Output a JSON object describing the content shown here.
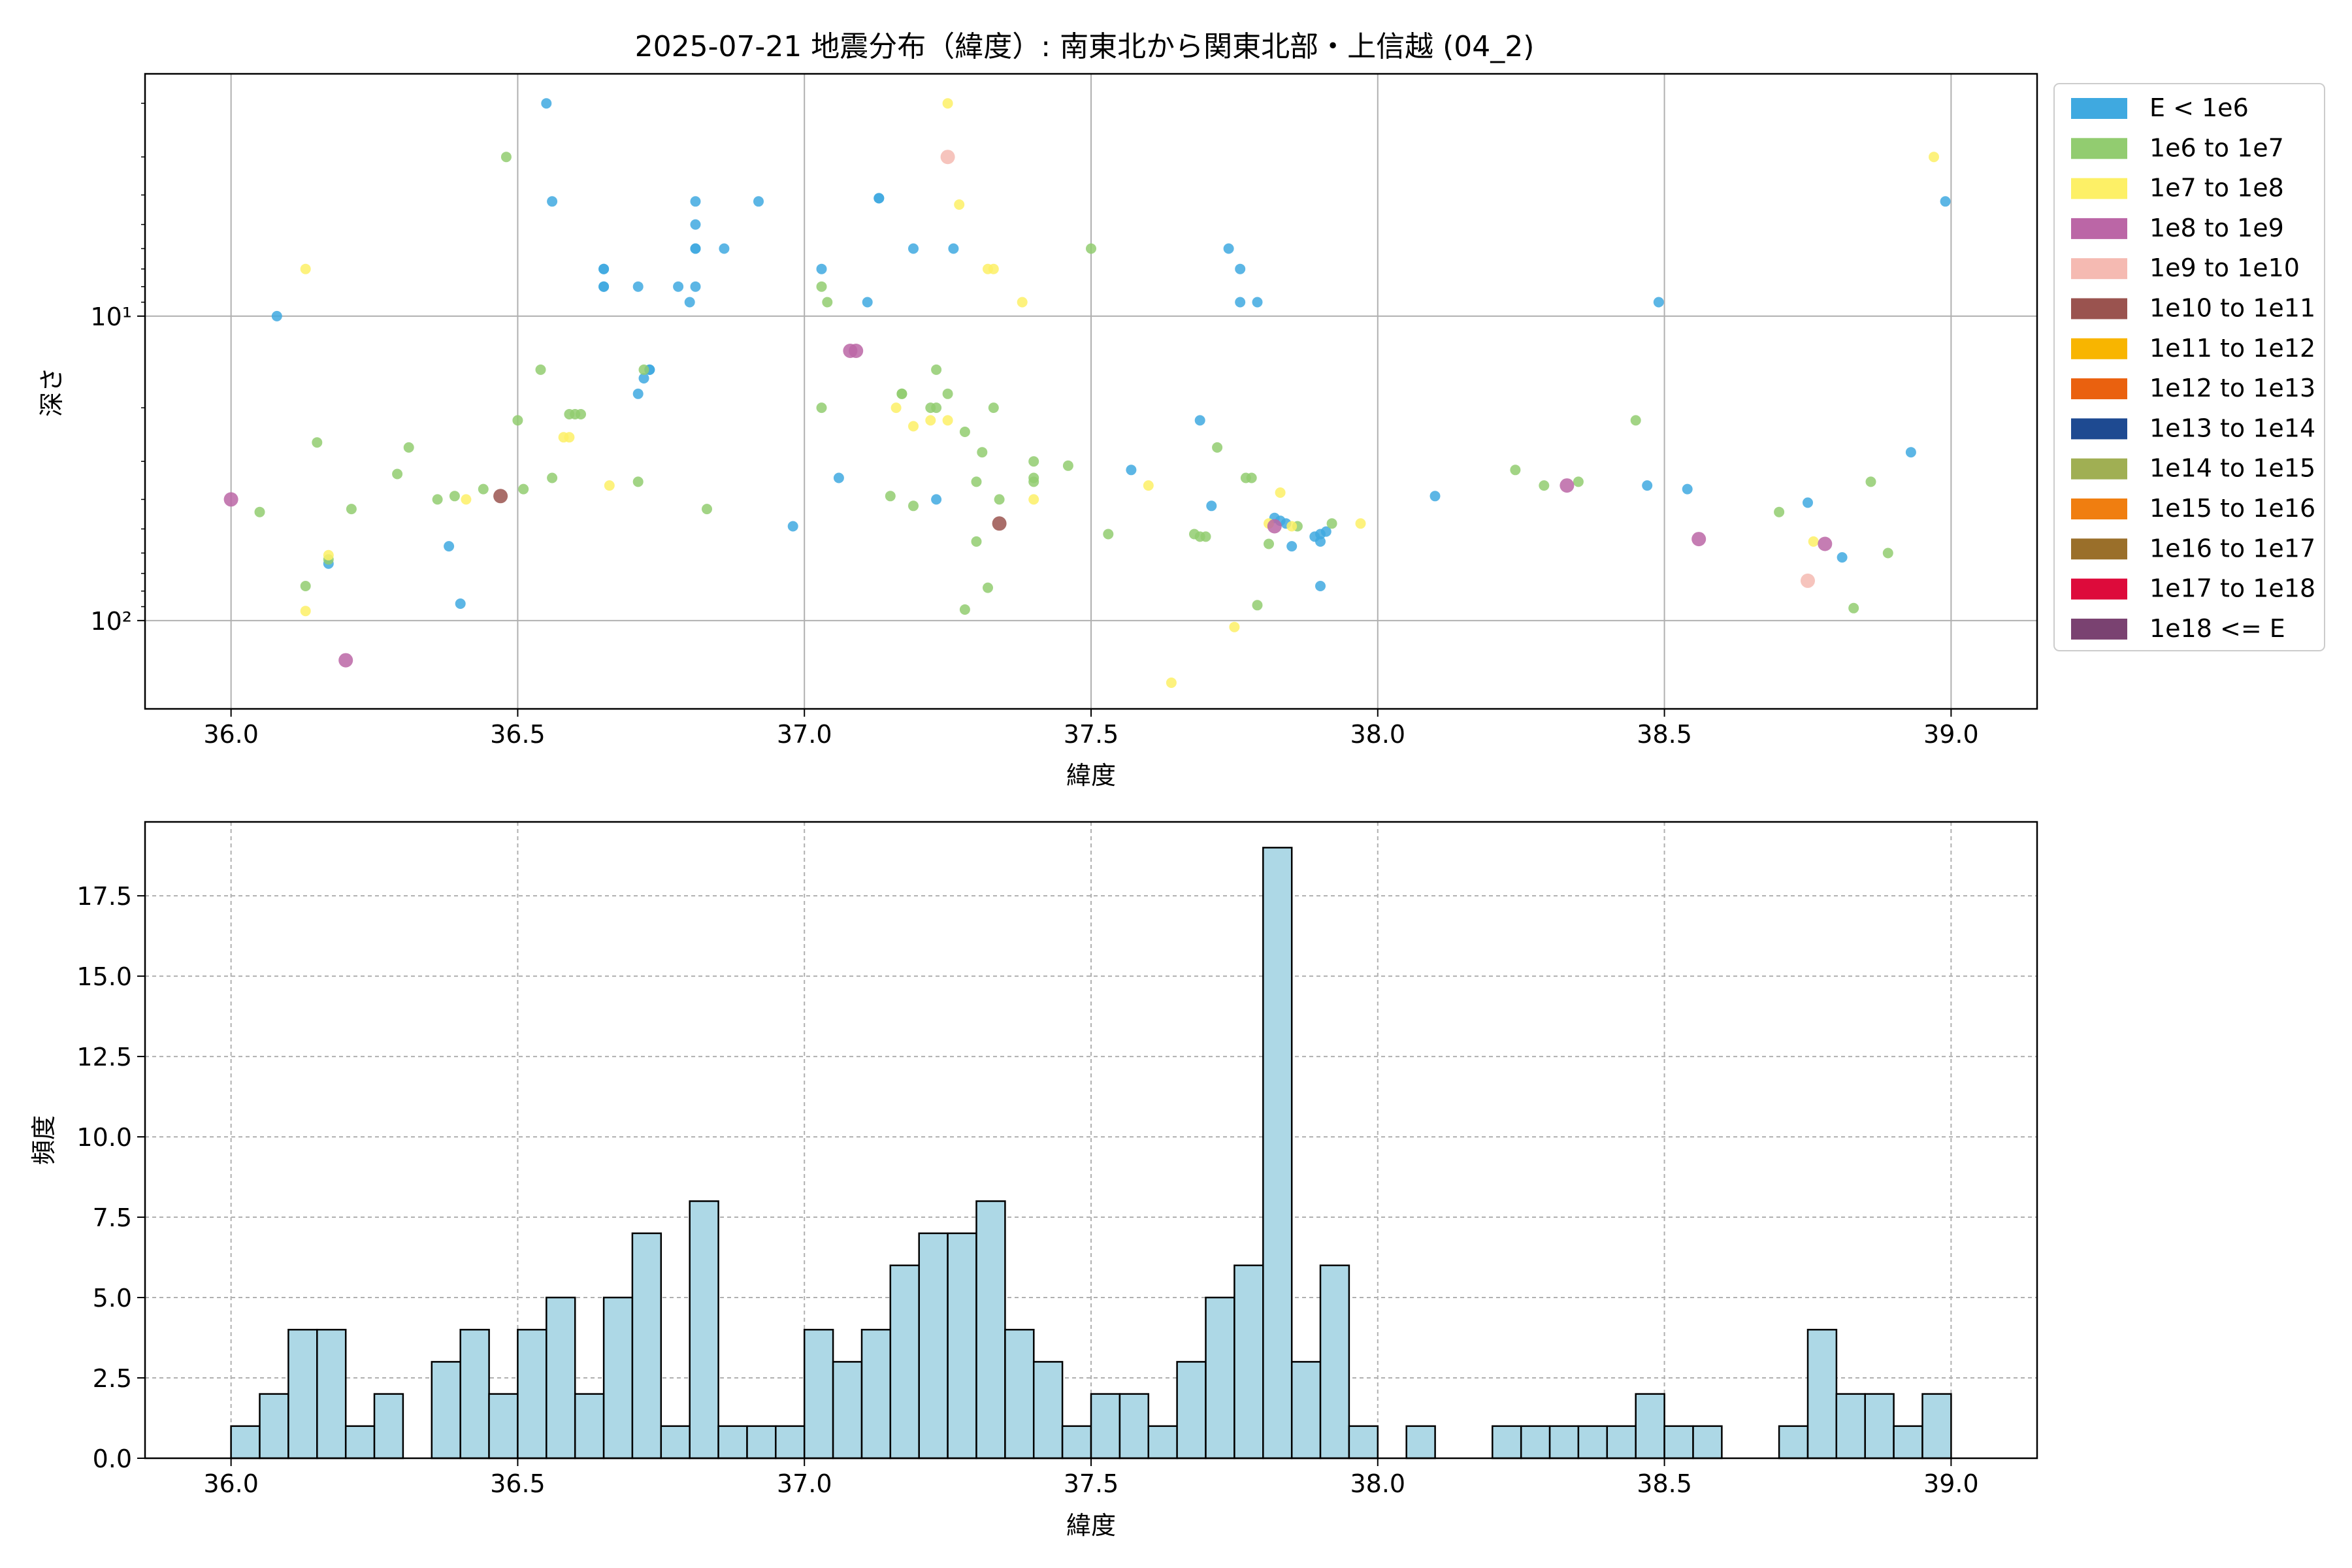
{
  "figure_title": "2025-07-21 地震分布（緯度）: 南東北から関東北部・上信越 (04_2)",
  "chart_data": [
    {
      "type": "scatter",
      "title": "2025-07-21 地震分布（緯度）: 南東北から関東北部・上信越 (04_2)",
      "xlabel": "緯度",
      "ylabel": "深さ",
      "xlim": [
        35.85,
        39.15
      ],
      "ylim": [
        195,
        1.6
      ],
      "yscale": "log",
      "y_inverted": true,
      "xticks": [
        36.0,
        36.5,
        37.0,
        37.5,
        38.0,
        38.5,
        39.0
      ],
      "xtick_labels": [
        "36.0",
        "36.5",
        "37.0",
        "37.5",
        "38.0",
        "38.5",
        "39.0"
      ],
      "yticks": [
        10,
        100
      ],
      "ytick_labels": [
        "10¹",
        "10²"
      ],
      "grid": true,
      "legend_position": "outside-right",
      "legend": [
        {
          "label": "E < 1e6",
          "color": "#3fa9e0"
        },
        {
          "label": "1e6 to 1e7",
          "color": "#92cc70"
        },
        {
          "label": "1e7 to 1e8",
          "color": "#fdf066"
        },
        {
          "label": "1e8 to 1e9",
          "color": "#bb66a6"
        },
        {
          "label": "1e9 to 1e10",
          "color": "#f5bab2"
        },
        {
          "label": "1e10 to 1e11",
          "color": "#9a534f"
        },
        {
          "label": "1e11 to 1e12",
          "color": "#f8b500"
        },
        {
          "label": "1e12 to 1e13",
          "color": "#ea610f"
        },
        {
          "label": "1e13 to 1e14",
          "color": "#1e4a91"
        },
        {
          "label": "1e14 to 1e15",
          "color": "#a0af53"
        },
        {
          "label": "1e15 to 1e16",
          "color": "#f07e10"
        },
        {
          "label": "1e16 to 1e17",
          "color": "#9a6f2a"
        },
        {
          "label": "1e17 to 1e18",
          "color": "#dd0b3b"
        },
        {
          "label": "1e18 <= E",
          "color": "#7a4271"
        }
      ],
      "series": [
        {
          "name": "E < 1e6",
          "color": "#3fa9e0",
          "points": [
            [
              36.08,
              10
            ],
            [
              36.17,
              65
            ],
            [
              36.38,
              57
            ],
            [
              36.4,
              88
            ],
            [
              36.55,
              2
            ],
            [
              36.56,
              4.2
            ],
            [
              36.65,
              7
            ],
            [
              36.65,
              7
            ],
            [
              36.65,
              8
            ],
            [
              36.65,
              8
            ],
            [
              36.71,
              8
            ],
            [
              36.71,
              18
            ],
            [
              36.72,
              16
            ],
            [
              36.73,
              15
            ],
            [
              36.73,
              15
            ],
            [
              36.78,
              8
            ],
            [
              36.8,
              9
            ],
            [
              36.81,
              8
            ],
            [
              36.81,
              4.2
            ],
            [
              36.81,
              5
            ],
            [
              36.81,
              6
            ],
            [
              36.81,
              6
            ],
            [
              36.86,
              6
            ],
            [
              36.92,
              4.2
            ],
            [
              36.98,
              49
            ],
            [
              37.03,
              7
            ],
            [
              37.06,
              34
            ],
            [
              37.11,
              9
            ],
            [
              37.13,
              4.1
            ],
            [
              37.13,
              4.1
            ],
            [
              37.19,
              6
            ],
            [
              37.23,
              40
            ],
            [
              37.26,
              6
            ],
            [
              37.57,
              32
            ],
            [
              37.69,
              22
            ],
            [
              37.71,
              42
            ],
            [
              37.74,
              6
            ],
            [
              37.76,
              7
            ],
            [
              37.76,
              9
            ],
            [
              37.79,
              9
            ],
            [
              37.82,
              46
            ],
            [
              37.83,
              47
            ],
            [
              37.84,
              48
            ],
            [
              37.85,
              57
            ],
            [
              37.89,
              53
            ],
            [
              37.9,
              55
            ],
            [
              37.9,
              52
            ],
            [
              37.91,
              51
            ],
            [
              37.9,
              77
            ],
            [
              38.1,
              39
            ],
            [
              38.47,
              36
            ],
            [
              38.49,
              9
            ],
            [
              38.54,
              37
            ],
            [
              38.75,
              41
            ],
            [
              38.81,
              62
            ],
            [
              38.93,
              28
            ],
            [
              38.99,
              4.2
            ]
          ]
        },
        {
          "name": "1e6 to 1e7",
          "color": "#92cc70",
          "points": [
            [
              36.05,
              44
            ],
            [
              36.13,
              77
            ],
            [
              36.15,
              26
            ],
            [
              36.17,
              63
            ],
            [
              36.21,
              43
            ],
            [
              36.29,
              33
            ],
            [
              36.31,
              27
            ],
            [
              36.36,
              40
            ],
            [
              36.39,
              39
            ],
            [
              36.44,
              37
            ],
            [
              36.48,
              3
            ],
            [
              36.5,
              22
            ],
            [
              36.51,
              37
            ],
            [
              36.54,
              15
            ],
            [
              36.56,
              34
            ],
            [
              36.59,
              21
            ],
            [
              36.6,
              21
            ],
            [
              36.61,
              21
            ],
            [
              36.71,
              35
            ],
            [
              36.72,
              15
            ],
            [
              36.83,
              43
            ],
            [
              37.03,
              20
            ],
            [
              37.03,
              8
            ],
            [
              37.04,
              9
            ],
            [
              37.15,
              39
            ],
            [
              37.17,
              18
            ],
            [
              37.17,
              18
            ],
            [
              37.19,
              42
            ],
            [
              37.22,
              20
            ],
            [
              37.23,
              15
            ],
            [
              37.23,
              20
            ],
            [
              37.25,
              18
            ],
            [
              37.28,
              24
            ],
            [
              37.28,
              92
            ],
            [
              37.3,
              35
            ],
            [
              37.3,
              55
            ],
            [
              37.31,
              28
            ],
            [
              37.32,
              78
            ],
            [
              37.33,
              20
            ],
            [
              37.34,
              40
            ],
            [
              37.4,
              35
            ],
            [
              37.4,
              34
            ],
            [
              37.4,
              30
            ],
            [
              37.46,
              31
            ],
            [
              37.5,
              6
            ],
            [
              37.53,
              52
            ],
            [
              37.68,
              52
            ],
            [
              37.69,
              53
            ],
            [
              37.7,
              53
            ],
            [
              37.72,
              27
            ],
            [
              37.77,
              34
            ],
            [
              37.78,
              34
            ],
            [
              37.79,
              89
            ],
            [
              37.81,
              56
            ],
            [
              37.86,
              49
            ],
            [
              37.92,
              48
            ],
            [
              38.24,
              32
            ],
            [
              38.29,
              36
            ],
            [
              38.35,
              35
            ],
            [
              38.45,
              22
            ],
            [
              38.7,
              44
            ],
            [
              38.83,
              91
            ],
            [
              38.86,
              35
            ],
            [
              38.89,
              60
            ]
          ]
        },
        {
          "name": "1e7 to 1e8",
          "color": "#fdf066",
          "points": [
            [
              36.13,
              7
            ],
            [
              36.13,
              93
            ],
            [
              36.17,
              61
            ],
            [
              36.41,
              40
            ],
            [
              36.58,
              25
            ],
            [
              36.59,
              25
            ],
            [
              36.66,
              36
            ],
            [
              37.16,
              20
            ],
            [
              37.19,
              23
            ],
            [
              37.22,
              22
            ],
            [
              37.25,
              22
            ],
            [
              37.25,
              2
            ],
            [
              37.27,
              4.3
            ],
            [
              37.32,
              7
            ],
            [
              37.33,
              7
            ],
            [
              37.38,
              9
            ],
            [
              37.4,
              40
            ],
            [
              37.6,
              36
            ],
            [
              37.64,
              160
            ],
            [
              37.75,
              105
            ],
            [
              37.81,
              48
            ],
            [
              37.83,
              38
            ],
            [
              37.85,
              49
            ],
            [
              37.97,
              48
            ],
            [
              38.76,
              55
            ],
            [
              38.97,
              3
            ]
          ]
        },
        {
          "name": "1e8 to 1e9",
          "color": "#bb66a6",
          "points": [
            [
              36.0,
              40
            ],
            [
              36.2,
              135
            ],
            [
              37.08,
              13
            ],
            [
              37.09,
              13
            ],
            [
              37.82,
              49
            ],
            [
              38.33,
              36
            ],
            [
              38.56,
              54
            ],
            [
              38.78,
              56
            ]
          ]
        },
        {
          "name": "1e9 to 1e10",
          "color": "#f5bab2",
          "points": [
            [
              37.25,
              3
            ],
            [
              38.75,
              74
            ]
          ]
        },
        {
          "name": "1e10 to 1e11",
          "color": "#9a534f",
          "points": [
            [
              36.47,
              39
            ],
            [
              37.34,
              48
            ]
          ]
        }
      ]
    },
    {
      "type": "bar",
      "xlabel": "緯度",
      "ylabel": "頻度",
      "xlim": [
        35.85,
        39.15
      ],
      "ylim": [
        0,
        19.8
      ],
      "xticks": [
        36.0,
        36.5,
        37.0,
        37.5,
        38.0,
        38.5,
        39.0
      ],
      "xtick_labels": [
        "36.0",
        "36.5",
        "37.0",
        "37.5",
        "38.0",
        "38.5",
        "39.0"
      ],
      "yticks": [
        0,
        2.5,
        5.0,
        7.5,
        10.0,
        12.5,
        15.0,
        17.5
      ],
      "ytick_labels": [
        "0.0",
        "2.5",
        "5.0",
        "7.5",
        "10.0",
        "12.5",
        "15.0",
        "17.5"
      ],
      "grid": true,
      "bar_color": "#add8e6",
      "bin_start": 36.0,
      "bin_width": 0.05,
      "values": [
        1,
        2,
        4,
        4,
        1,
        2,
        0,
        3,
        4,
        2,
        4,
        5,
        2,
        5,
        7,
        1,
        8,
        1,
        1,
        1,
        4,
        3,
        4,
        6,
        7,
        7,
        8,
        4,
        3,
        1,
        2,
        2,
        1,
        3,
        5,
        6,
        19,
        3,
        6,
        1,
        0,
        1,
        0,
        0,
        1,
        1,
        1,
        1,
        1,
        2,
        1,
        1,
        0,
        0,
        1,
        4,
        2,
        2,
        1,
        2
      ]
    }
  ]
}
